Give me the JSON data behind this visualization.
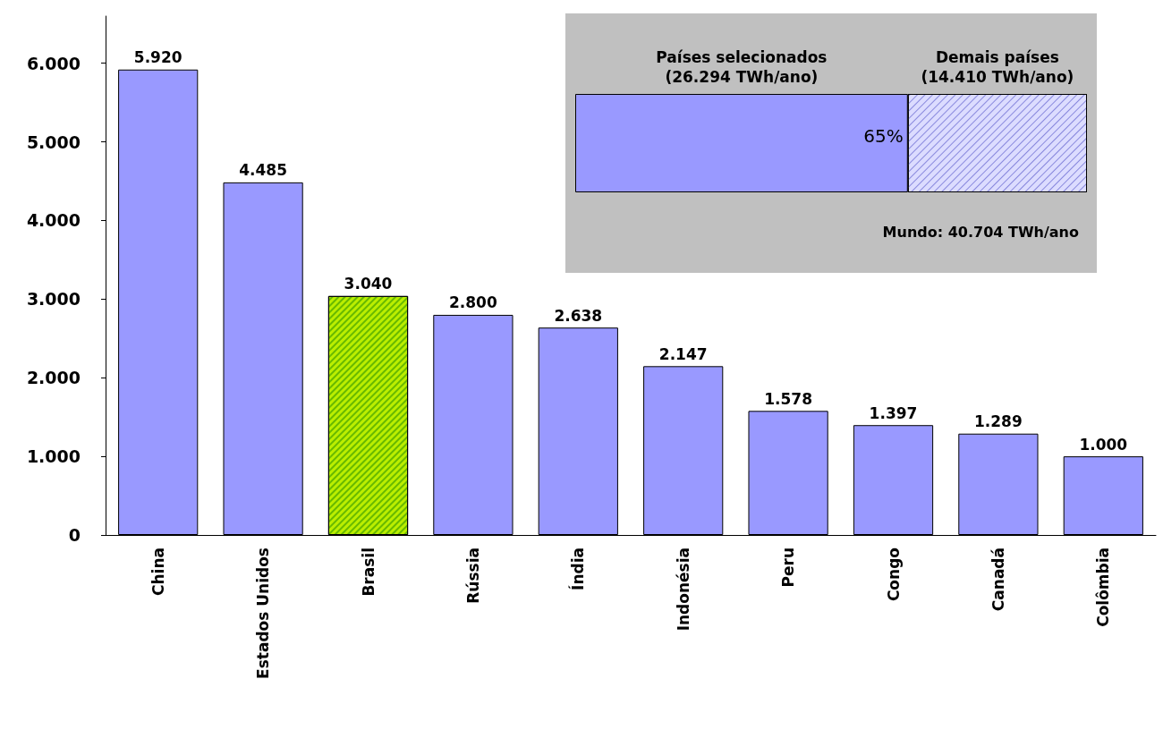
{
  "chart_data": [
    {
      "type": "bar",
      "categories": [
        "China",
        "Estados Unidos",
        "Brasil",
        "Rússia",
        "Índia",
        "Indonésia",
        "Peru",
        "Congo",
        "Canadá",
        "Colômbia"
      ],
      "values": [
        5920,
        4485,
        3040,
        2800,
        2638,
        2147,
        1578,
        1397,
        1289,
        1000
      ],
      "value_labels": [
        "5.920",
        "4.485",
        "3.040",
        "2.800",
        "2.638",
        "2.147",
        "1.578",
        "1.397",
        "1.289",
        "1.000"
      ],
      "colors": [
        "#9999ff",
        "#9999ff",
        "#bbee00",
        "#9999ff",
        "#9999ff",
        "#9999ff",
        "#9999ff",
        "#9999ff",
        "#9999ff",
        "#9999ff"
      ],
      "ylim": [
        0,
        6600
      ],
      "yticks": [
        0,
        {
          "value": 1000,
          "label": "1.000"
        },
        {
          "value": 2000,
          "label": "2.000"
        },
        {
          "value": 3000,
          "label": "3.000"
        },
        {
          "value": 4000,
          "label": "4.000"
        },
        {
          "value": 5000,
          "label": "5.000"
        },
        {
          "value": 6000,
          "label": "6.000"
        }
      ],
      "grid": false,
      "legend": false
    },
    {
      "type": "bar",
      "orientation": "horizontal",
      "stacked": true,
      "categories": [
        null
      ],
      "series": [
        {
          "name": "Países selecionados\n(26.294 TWh/ano)",
          "color": "#9999ff",
          "values": [
            65
          ],
          "value_labels": [
            "65%"
          ]
        },
        {
          "name": "Demais países\n(14.410 TWh/ano)",
          "color": "#dcdcff",
          "values": [
            35
          ]
        }
      ],
      "xlim": [
        0,
        100
      ],
      "annotations": [
        "Mundo: 40.704 TWh/ano"
      ],
      "legend": false
    }
  ]
}
